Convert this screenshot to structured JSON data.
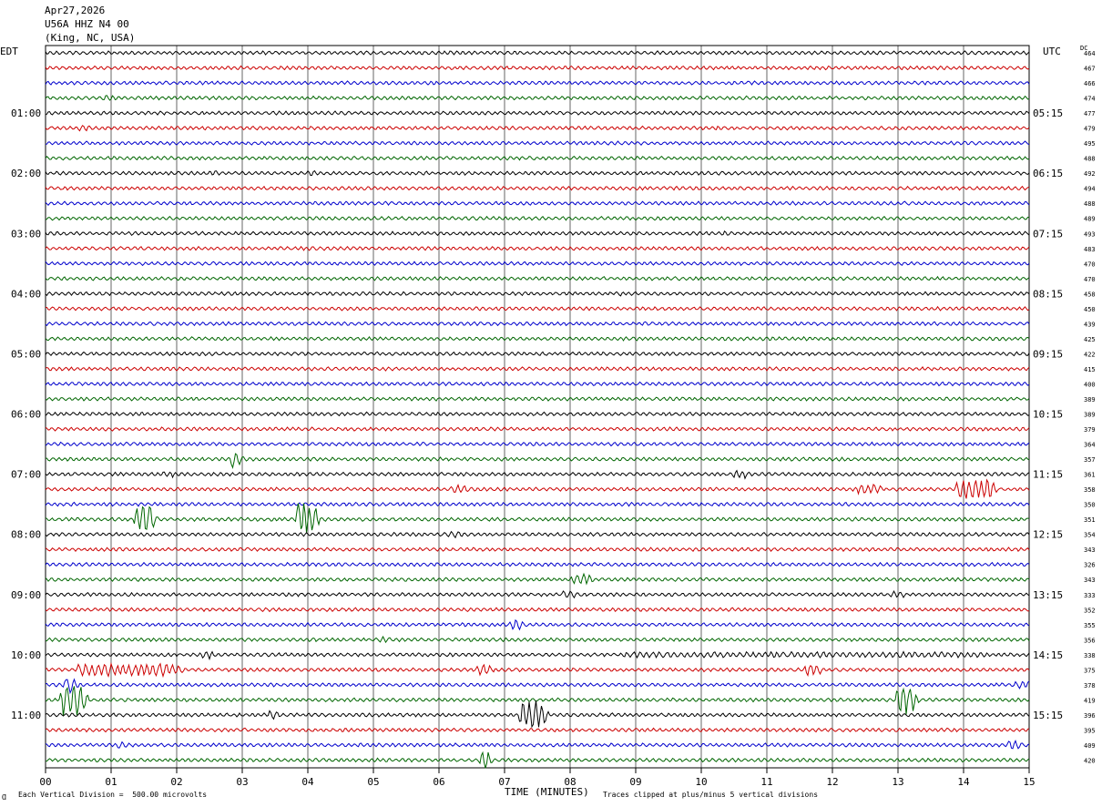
{
  "header": {
    "date": "Apr27,2026",
    "station": "U56A HHZ N4 00",
    "location": "(King, NC, USA)"
  },
  "left_label": "EDT",
  "right_label": "UTC",
  "dc_label": "DC",
  "footer": {
    "scale_note": "Each Vertical Division =  500.00 microvolts",
    "clip_note": "Traces clipped at plus/minus 5 vertical divisions",
    "corner_mark": "Ɑ"
  },
  "colors": {
    "trace_cycle": [
      "#000000",
      "#cc0000",
      "#0000cc",
      "#006600"
    ],
    "grid": "#000000"
  },
  "chart_data": {
    "type": "line",
    "xlabel": "TIME (MINUTES)",
    "xlim": [
      0,
      15
    ],
    "x_ticks": [
      "00",
      "01",
      "02",
      "03",
      "04",
      "05",
      "06",
      "07",
      "08",
      "09",
      "10",
      "11",
      "12",
      "13",
      "14",
      "15"
    ],
    "left_hour_labels": [
      "01:00",
      "02:00",
      "03:00",
      "04:00",
      "05:00",
      "06:00",
      "07:00",
      "08:00",
      "09:00",
      "10:00",
      "11:00"
    ],
    "right_hour_labels": [
      "05:15",
      "06:15",
      "07:15",
      "08:15",
      "09:15",
      "10:15",
      "11:15",
      "12:15",
      "13:15",
      "14:15",
      "15:15"
    ],
    "hour_label_rows": [
      4,
      8,
      12,
      16,
      20,
      24,
      28,
      32,
      36,
      40,
      44
    ],
    "dc_offsets": [
      464,
      467,
      466,
      474,
      477,
      479,
      495,
      488,
      492,
      494,
      488,
      489,
      493,
      483,
      470,
      470,
      458,
      450,
      439,
      425,
      422,
      415,
      400,
      389,
      389,
      379,
      364,
      357,
      361,
      358,
      350,
      351,
      354,
      343,
      326,
      343,
      333,
      352,
      355,
      356,
      338,
      375,
      378,
      419,
      396,
      395,
      409,
      420
    ],
    "events": [
      {
        "row": 3,
        "minute": 0.9,
        "amp": 1.5,
        "dur": 0.15
      },
      {
        "row": 5,
        "minute": 0.5,
        "amp": 1.3,
        "dur": 0.15
      },
      {
        "row": 5,
        "minute": 10.2,
        "amp": 1.2,
        "dur": 0.1
      },
      {
        "row": 8,
        "minute": 2.5,
        "amp": 1.3,
        "dur": 0.1
      },
      {
        "row": 8,
        "minute": 4.0,
        "amp": 1.2,
        "dur": 0.1
      },
      {
        "row": 12,
        "minute": 10.3,
        "amp": 1.2,
        "dur": 0.1
      },
      {
        "row": 16,
        "minute": 8.7,
        "amp": 1.1,
        "dur": 0.1
      },
      {
        "row": 27,
        "minute": 2.83,
        "amp": 4.0,
        "dur": 0.1
      },
      {
        "row": 28,
        "minute": 1.8,
        "amp": 1.5,
        "dur": 0.15
      },
      {
        "row": 28,
        "minute": 10.5,
        "amp": 2.0,
        "dur": 0.2
      },
      {
        "row": 29,
        "minute": 6.2,
        "amp": 2.0,
        "dur": 0.2
      },
      {
        "row": 29,
        "minute": 12.4,
        "amp": 2.5,
        "dur": 0.3
      },
      {
        "row": 29,
        "minute": 13.9,
        "amp": 5.0,
        "dur": 0.5
      },
      {
        "row": 29,
        "minute": 14.3,
        "amp": 4.0,
        "dur": 0.1
      },
      {
        "row": 31,
        "minute": 1.38,
        "amp": 8.0,
        "dur": 0.2
      },
      {
        "row": 31,
        "minute": 3.85,
        "amp": 9.0,
        "dur": 0.22
      },
      {
        "row": 32,
        "minute": 6.15,
        "amp": 2.0,
        "dur": 0.15
      },
      {
        "row": 35,
        "minute": 8.05,
        "amp": 3.0,
        "dur": 0.2
      },
      {
        "row": 36,
        "minute": 7.9,
        "amp": 2.0,
        "dur": 0.15
      },
      {
        "row": 36,
        "minute": 12.9,
        "amp": 1.8,
        "dur": 0.15
      },
      {
        "row": 38,
        "minute": 7.1,
        "amp": 3.0,
        "dur": 0.1
      },
      {
        "row": 39,
        "minute": 5.1,
        "amp": 1.5,
        "dur": 0.1
      },
      {
        "row": 40,
        "minute": 2.4,
        "amp": 2.0,
        "dur": 0.1
      },
      {
        "row": 40,
        "minute": 8.8,
        "amp": 1.4,
        "dur": 5.5
      },
      {
        "row": 41,
        "minute": 0.5,
        "amp": 3.0,
        "dur": 1.5
      },
      {
        "row": 41,
        "minute": 6.6,
        "amp": 2.5,
        "dur": 0.15
      },
      {
        "row": 41,
        "minute": 11.6,
        "amp": 3.5,
        "dur": 0.15
      },
      {
        "row": 42,
        "minute": 0.3,
        "amp": 4.0,
        "dur": 0.1
      },
      {
        "row": 42,
        "minute": 14.8,
        "amp": 1.8,
        "dur": 0.3
      },
      {
        "row": 43,
        "minute": 0.25,
        "amp": 8.0,
        "dur": 0.3
      },
      {
        "row": 43,
        "minute": 13.0,
        "amp": 7.0,
        "dur": 0.2
      },
      {
        "row": 44,
        "minute": 3.4,
        "amp": 2.0,
        "dur": 0.1
      },
      {
        "row": 44,
        "minute": 7.25,
        "amp": 7.0,
        "dur": 0.3
      },
      {
        "row": 46,
        "minute": 1.1,
        "amp": 1.5,
        "dur": 0.1
      },
      {
        "row": 46,
        "minute": 14.7,
        "amp": 2.5,
        "dur": 0.1
      },
      {
        "row": 47,
        "minute": 6.65,
        "amp": 6.0,
        "dur": 0.05
      }
    ]
  }
}
